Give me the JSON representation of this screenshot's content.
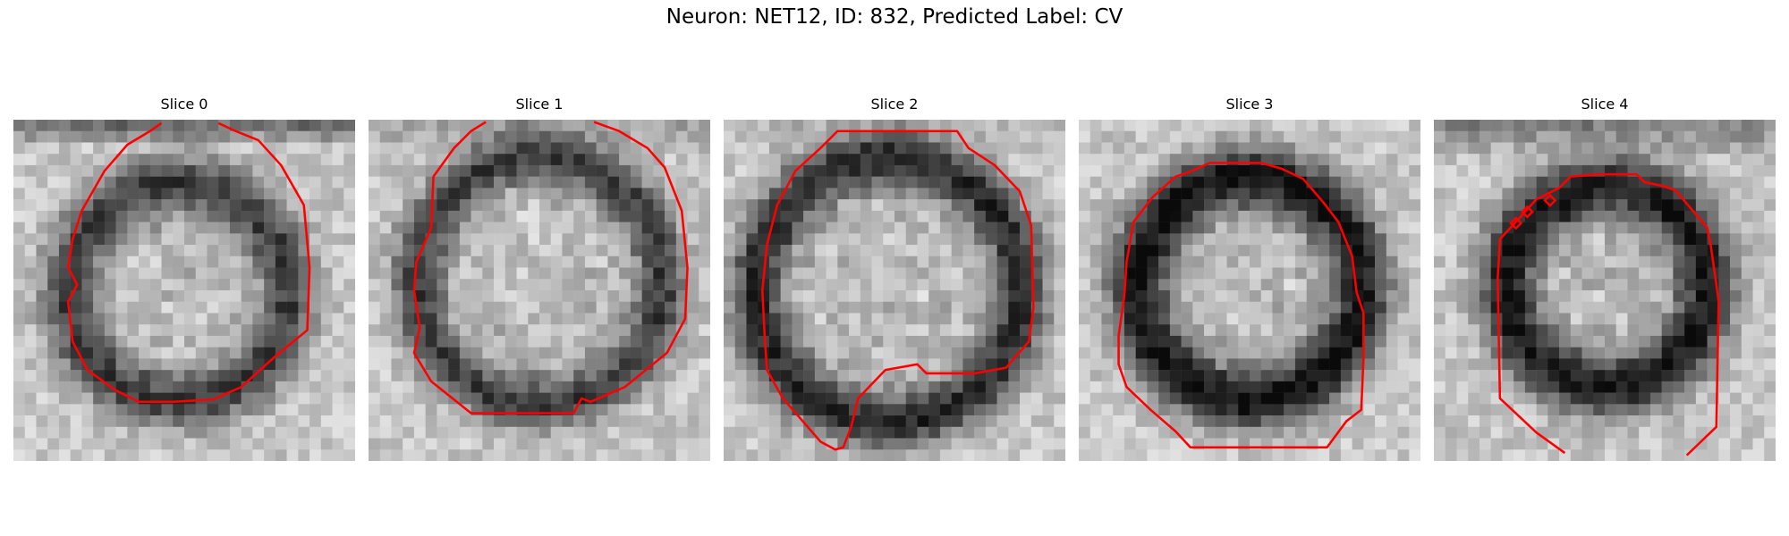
{
  "figure": {
    "title": "Neuron: NET12, ID: 832, Predicted Label: CV"
  },
  "panels": [
    {
      "title": "Slice 0"
    },
    {
      "title": "Slice 1"
    },
    {
      "title": "Slice 2"
    },
    {
      "title": "Slice 3"
    },
    {
      "title": "Slice 4"
    }
  ],
  "colors": {
    "contour": "#ff0000",
    "background": "#ffffff"
  }
}
